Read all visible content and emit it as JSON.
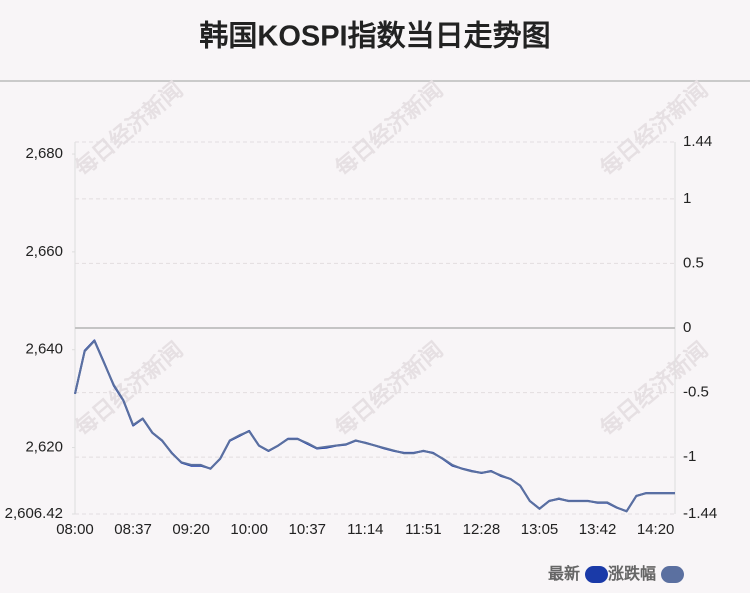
{
  "chart_data": {
    "type": "line",
    "title": "韩国KOSPI指数当日走势图",
    "watermark": "每日经济新闻",
    "categories": [
      "08:00",
      null,
      null,
      null,
      null,
      null,
      "08:37",
      null,
      null,
      null,
      null,
      null,
      "09:20",
      null,
      null,
      null,
      null,
      null,
      "10:00",
      null,
      null,
      null,
      null,
      null,
      "10:37",
      null,
      null,
      null,
      null,
      null,
      "11:14",
      null,
      null,
      null,
      null,
      null,
      "11:51",
      null,
      null,
      null,
      null,
      null,
      "12:28",
      null,
      null,
      null,
      null,
      null,
      "13:05",
      null,
      null,
      null,
      null,
      null,
      "13:42",
      null,
      null,
      null,
      null,
      null,
      "14:20",
      null,
      null
    ],
    "series": [
      {
        "name": "最新",
        "color": "#1a3aa8",
        "values": [
          2631.0,
          2639.8,
          2641.9,
          2637.4,
          2632.7,
          2629.6,
          2624.5,
          2625.9,
          2623.0,
          2621.4,
          2618.9,
          2616.9,
          2616.3,
          2616.3,
          2615.7,
          2617.7,
          2621.4,
          2622.4,
          2623.4,
          2620.4,
          2619.3,
          2620.4,
          2621.8,
          2621.8,
          2620.8,
          2619.8,
          2620.0,
          2620.4,
          2620.6,
          2621.4,
          2621.0,
          2620.4,
          2619.8,
          2619.3,
          2618.9,
          2618.9,
          2619.3,
          2618.9,
          2617.7,
          2616.3,
          2615.7,
          2615.2,
          2614.8,
          2615.2,
          2614.2,
          2613.6,
          2612.2,
          2609.1,
          2607.5,
          2609.1,
          2609.5,
          2609.1,
          2609.1,
          2609.1,
          2608.7,
          2608.7,
          2607.7,
          2607.0,
          2610.1,
          2610.7,
          2610.7,
          2610.7,
          2610.7
        ]
      },
      {
        "name": "涨跌幅",
        "color": "#5b70a0",
        "axis": "y2",
        "values": [
          -0.51,
          -0.18,
          -0.1,
          -0.27,
          -0.44,
          -0.56,
          -0.75,
          -0.7,
          -0.81,
          -0.87,
          -0.97,
          -1.04,
          -1.06,
          -1.06,
          -1.09,
          -1.01,
          -0.87,
          -0.83,
          -0.8,
          -0.91,
          -0.95,
          -0.91,
          -0.86,
          -0.86,
          -0.89,
          -0.93,
          -0.92,
          -0.91,
          -0.9,
          -0.87,
          -0.89,
          -0.91,
          -0.93,
          -0.95,
          -0.97,
          -0.97,
          -0.95,
          -0.97,
          -1.01,
          -1.06,
          -1.09,
          -1.11,
          -1.12,
          -1.11,
          -1.14,
          -1.17,
          -1.22,
          -1.34,
          -1.4,
          -1.34,
          -1.32,
          -1.34,
          -1.34,
          -1.34,
          -1.35,
          -1.35,
          -1.39,
          -1.42,
          -1.3,
          -1.28,
          -1.28,
          -1.28,
          -1.28
        ]
      }
    ],
    "ylim": [
      2606.42,
      2682.46
    ],
    "yticks": [
      {
        "value": 2680,
        "label": "2,680"
      },
      {
        "value": 2660,
        "label": "2,660"
      },
      {
        "value": 2640,
        "label": "2,640"
      },
      {
        "value": 2620,
        "label": "2,620"
      },
      {
        "value": 2606.42,
        "label": "2,606.42"
      }
    ],
    "y2lim": [
      -1.44,
      1.44
    ],
    "y2ticks": [
      1.44,
      1,
      0.5,
      0,
      -0.5,
      -1,
      -1.44
    ],
    "grid": true,
    "legend": "bottom-right"
  }
}
